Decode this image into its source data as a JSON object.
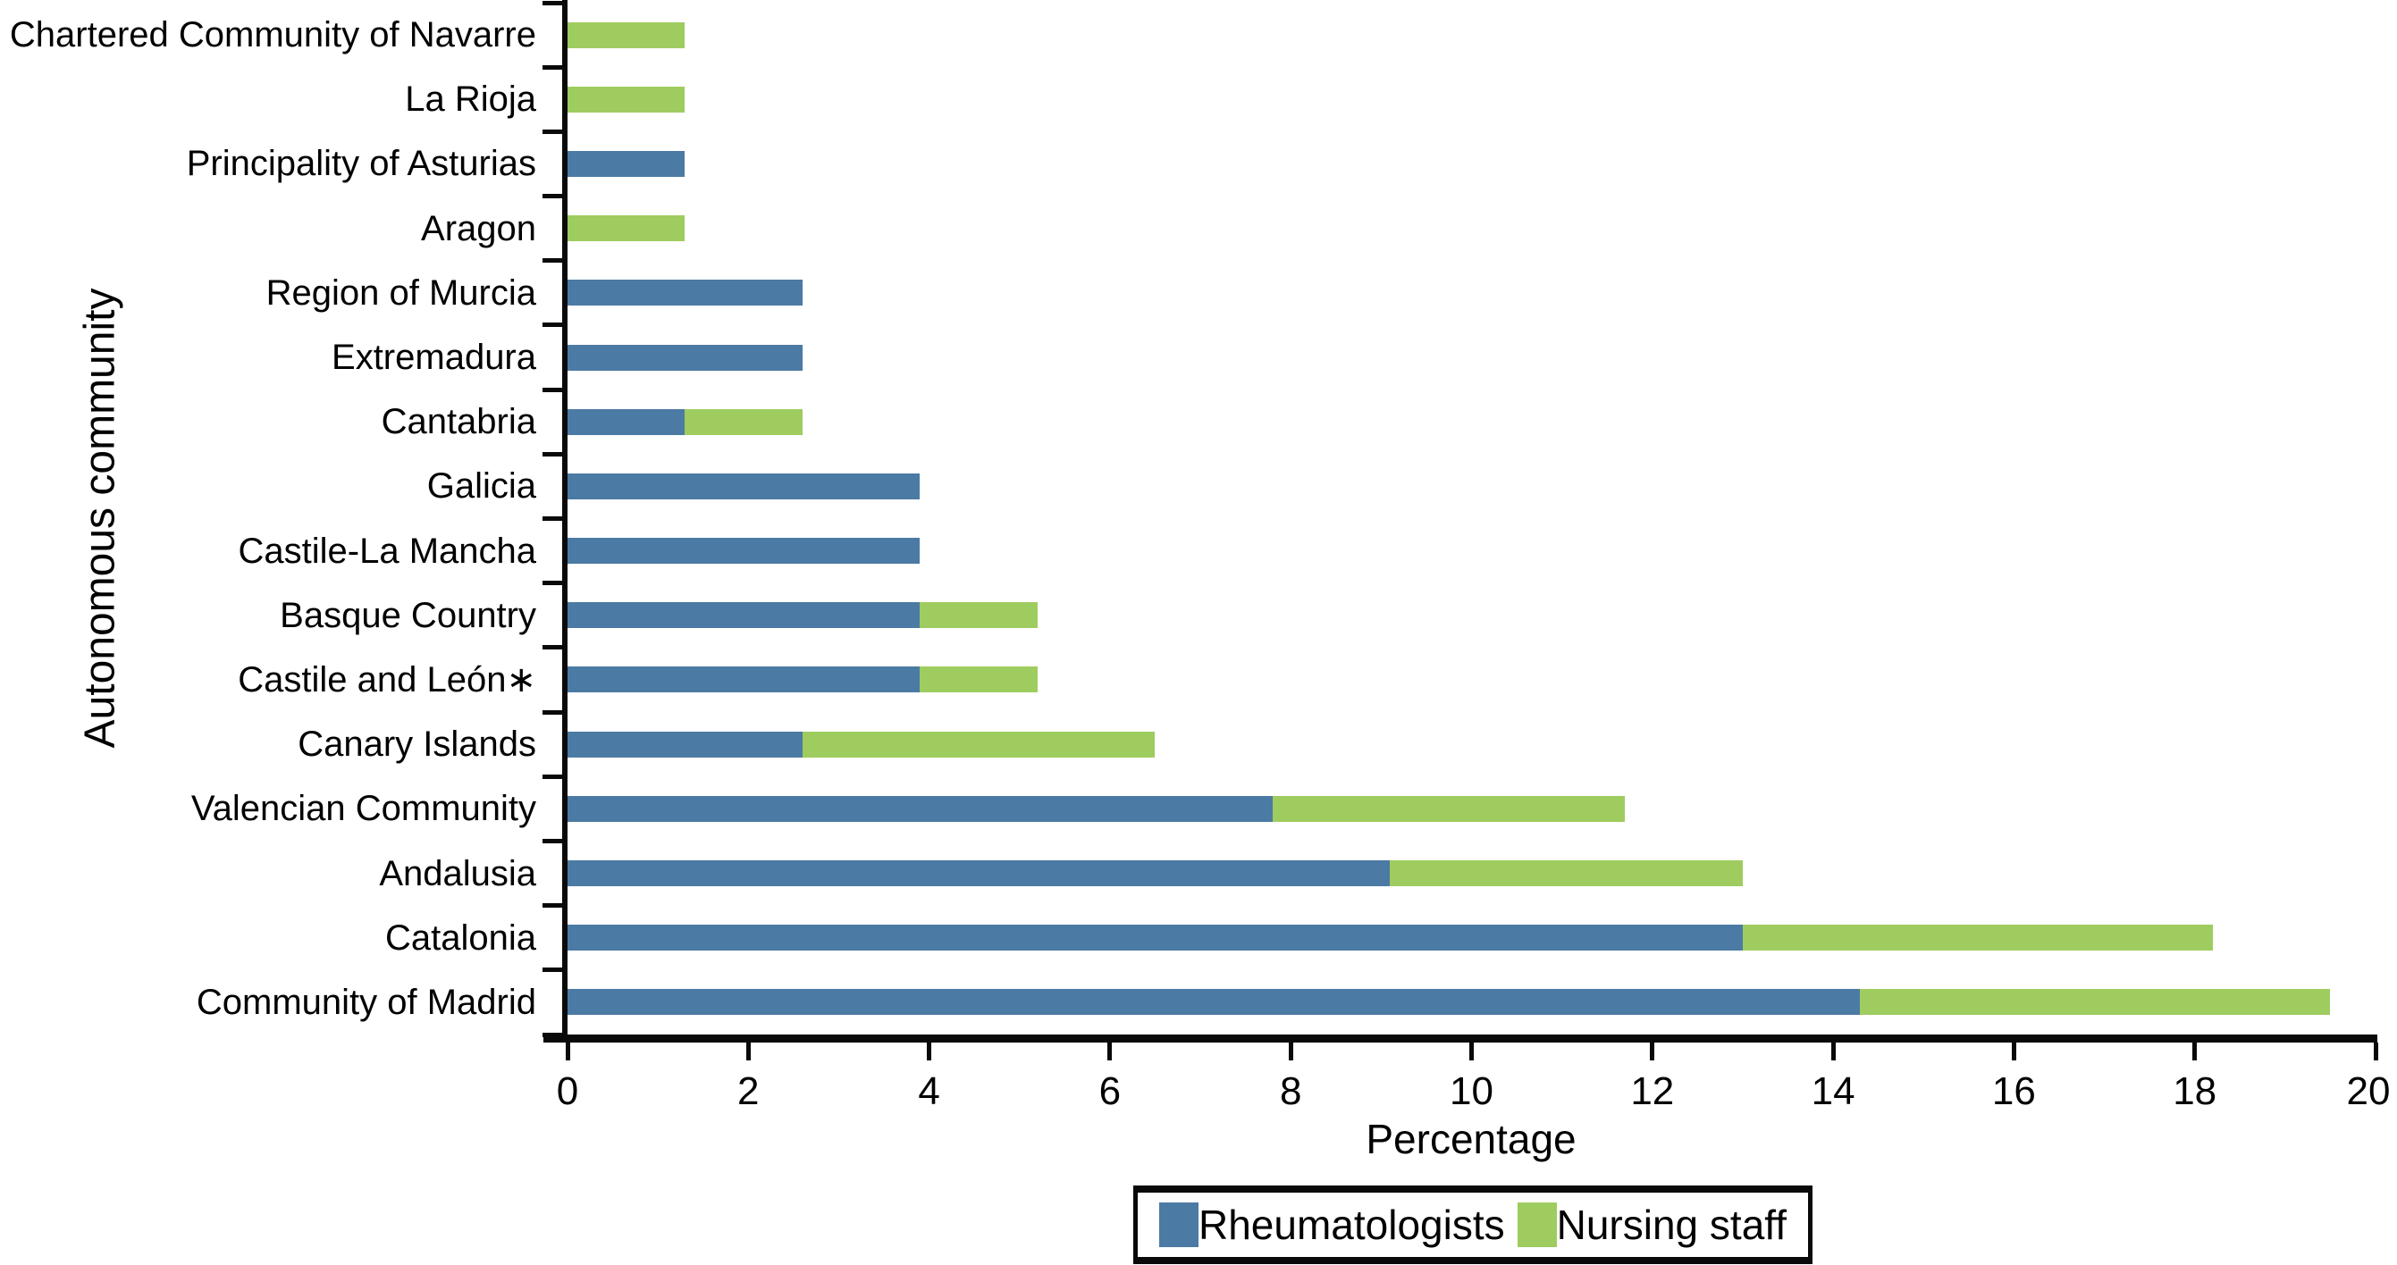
{
  "chart_data": {
    "type": "bar",
    "orientation": "horizontal",
    "stacked": true,
    "xlabel": "Percentage",
    "ylabel": "Autonomous community",
    "xlim": [
      0,
      20
    ],
    "xticks": [
      0,
      2,
      4,
      6,
      8,
      10,
      12,
      14,
      16,
      18,
      20
    ],
    "grid": false,
    "legend_position": "bottom-center",
    "categories": [
      "Chartered Community of Navarre",
      "La Rioja",
      "Principality of Asturias",
      "Aragon",
      "Region of Murcia",
      "Extremadura",
      "Cantabria",
      "Galicia",
      "Castile-La Mancha",
      "Basque Country",
      "Castile and León∗",
      "Canary Islands",
      "Valencian Community",
      "Andalusia",
      "Catalonia",
      "Community of Madrid"
    ],
    "series": [
      {
        "name": "Rheumatologists",
        "color": "#4b7aa4",
        "values": [
          0,
          0,
          1.3,
          0,
          2.6,
          2.6,
          1.3,
          3.9,
          3.9,
          3.9,
          3.9,
          2.6,
          7.8,
          9.1,
          13.0,
          14.3
        ]
      },
      {
        "name": "Nursing staff",
        "color": "#9fcc5f",
        "values": [
          1.3,
          1.3,
          0,
          1.3,
          0,
          0,
          1.3,
          0,
          0,
          1.3,
          1.3,
          3.9,
          3.9,
          3.9,
          5.2,
          5.2
        ]
      }
    ]
  }
}
